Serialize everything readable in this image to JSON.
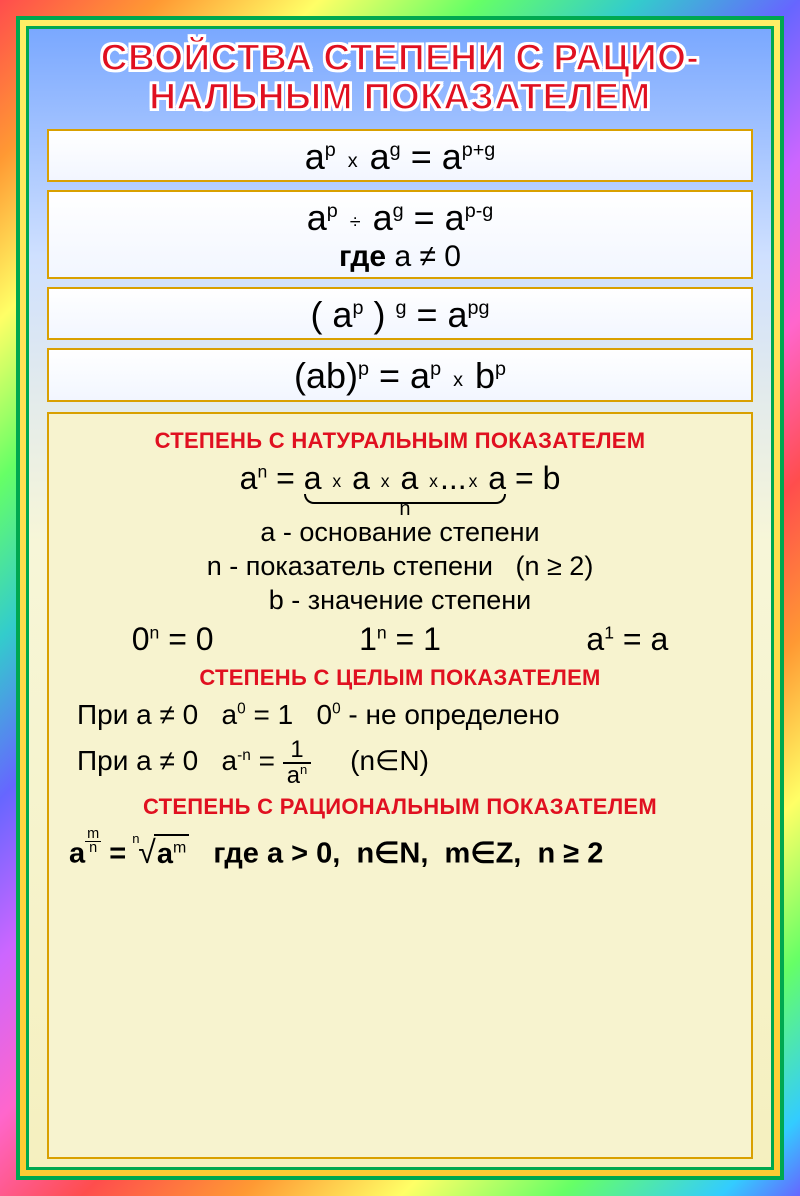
{
  "title_line1": "СВОЙСТВА СТЕПЕНИ С РАЦИО-",
  "title_line2": "НАЛЬНЫМ ПОКАЗАТЕЛЕМ",
  "rules": {
    "r1": "a<sup>p</sup> <span class='smx'>x</span> a<sup>g</sup> = a<sup>p+g</sup>",
    "r2_main": "a<sup>p</sup> <span class='smx'>÷</span> a<sup>g</sup> = a<sup>p-g</sup>",
    "r2_cond": "<span class='bold-k'>где</span> a ≠ 0",
    "r3": "( a<sup>p</sup> ) <sup>g</sup> = a<sup>pg</sup>",
    "r4": "(ab)<sup>p</sup> = a<sup>p</sup> <span class='smx'>x</span> b<sup>p</sup>"
  },
  "sec1_head": "СТЕПЕНЬ С НАТУРАЛЬНЫМ ПОКАЗАТЕЛЕМ",
  "sec1_def": "a<sup>n</sup> = <span class='brace-wrap'>a <span class='smx'>x</span> a <span class='smx'>x</span> a <span class='smx'>x</span>...<span class='smx'>x</span> a<span class='brace-lbl'>n</span></span> = b",
  "sec1_a": "a - основание степени",
  "sec1_n": "n - показатель степени&nbsp;&nbsp;&nbsp;(n ≥ 2)",
  "sec1_b": "b - значение степени",
  "sec1_row_0": "0<sup>n</sup> = 0",
  "sec1_row_1": "1<sup>n</sup> = 1",
  "sec1_row_a": "a<sup>1</sup> = a",
  "sec2_head": "СТЕПЕНЬ С ЦЕЛЫМ ПОКАЗАТЕЛЕМ",
  "sec2_l1": "При a ≠ 0&nbsp;&nbsp;&nbsp;a<sup>0</sup> = 1&nbsp;&nbsp;&nbsp;0<sup>0</sup> - не определено",
  "sec2_l2": "При a ≠ 0&nbsp;&nbsp;&nbsp;a<sup>-n</sup> = <span class='frac'><span class='num'>1</span><span class='den'>a<sup>n</sup></span></span>&nbsp;&nbsp;&nbsp;&nbsp;&nbsp;(n∈N)",
  "sec3_head": "СТЕПЕНЬ С РАЦИОНАЛЬНЫМ ПОКАЗАТЕЛЕМ",
  "sec3_formula": "<span class='bolder'>a</span><span class='sfrac'><span class='n'>m</span><span class='d'>n</span></span> <span class='bolder'>=</span> <span class='root'><span class='ridx'>n</span><span class='rsym'>√</span><span class='rad bolder'>a<sup style='font-weight:400'>m</sup></span></span>&nbsp;&nbsp;&nbsp;<span class='bolder'>где a &gt; 0,&nbsp; n∈N,&nbsp; m∈Z,&nbsp; n ≥ 2</span>",
  "colors": {
    "heading_red": "#e01020",
    "border_gold": "#d9a000",
    "border_green": "#00a850",
    "panel_bg": "#f7f3cf"
  }
}
